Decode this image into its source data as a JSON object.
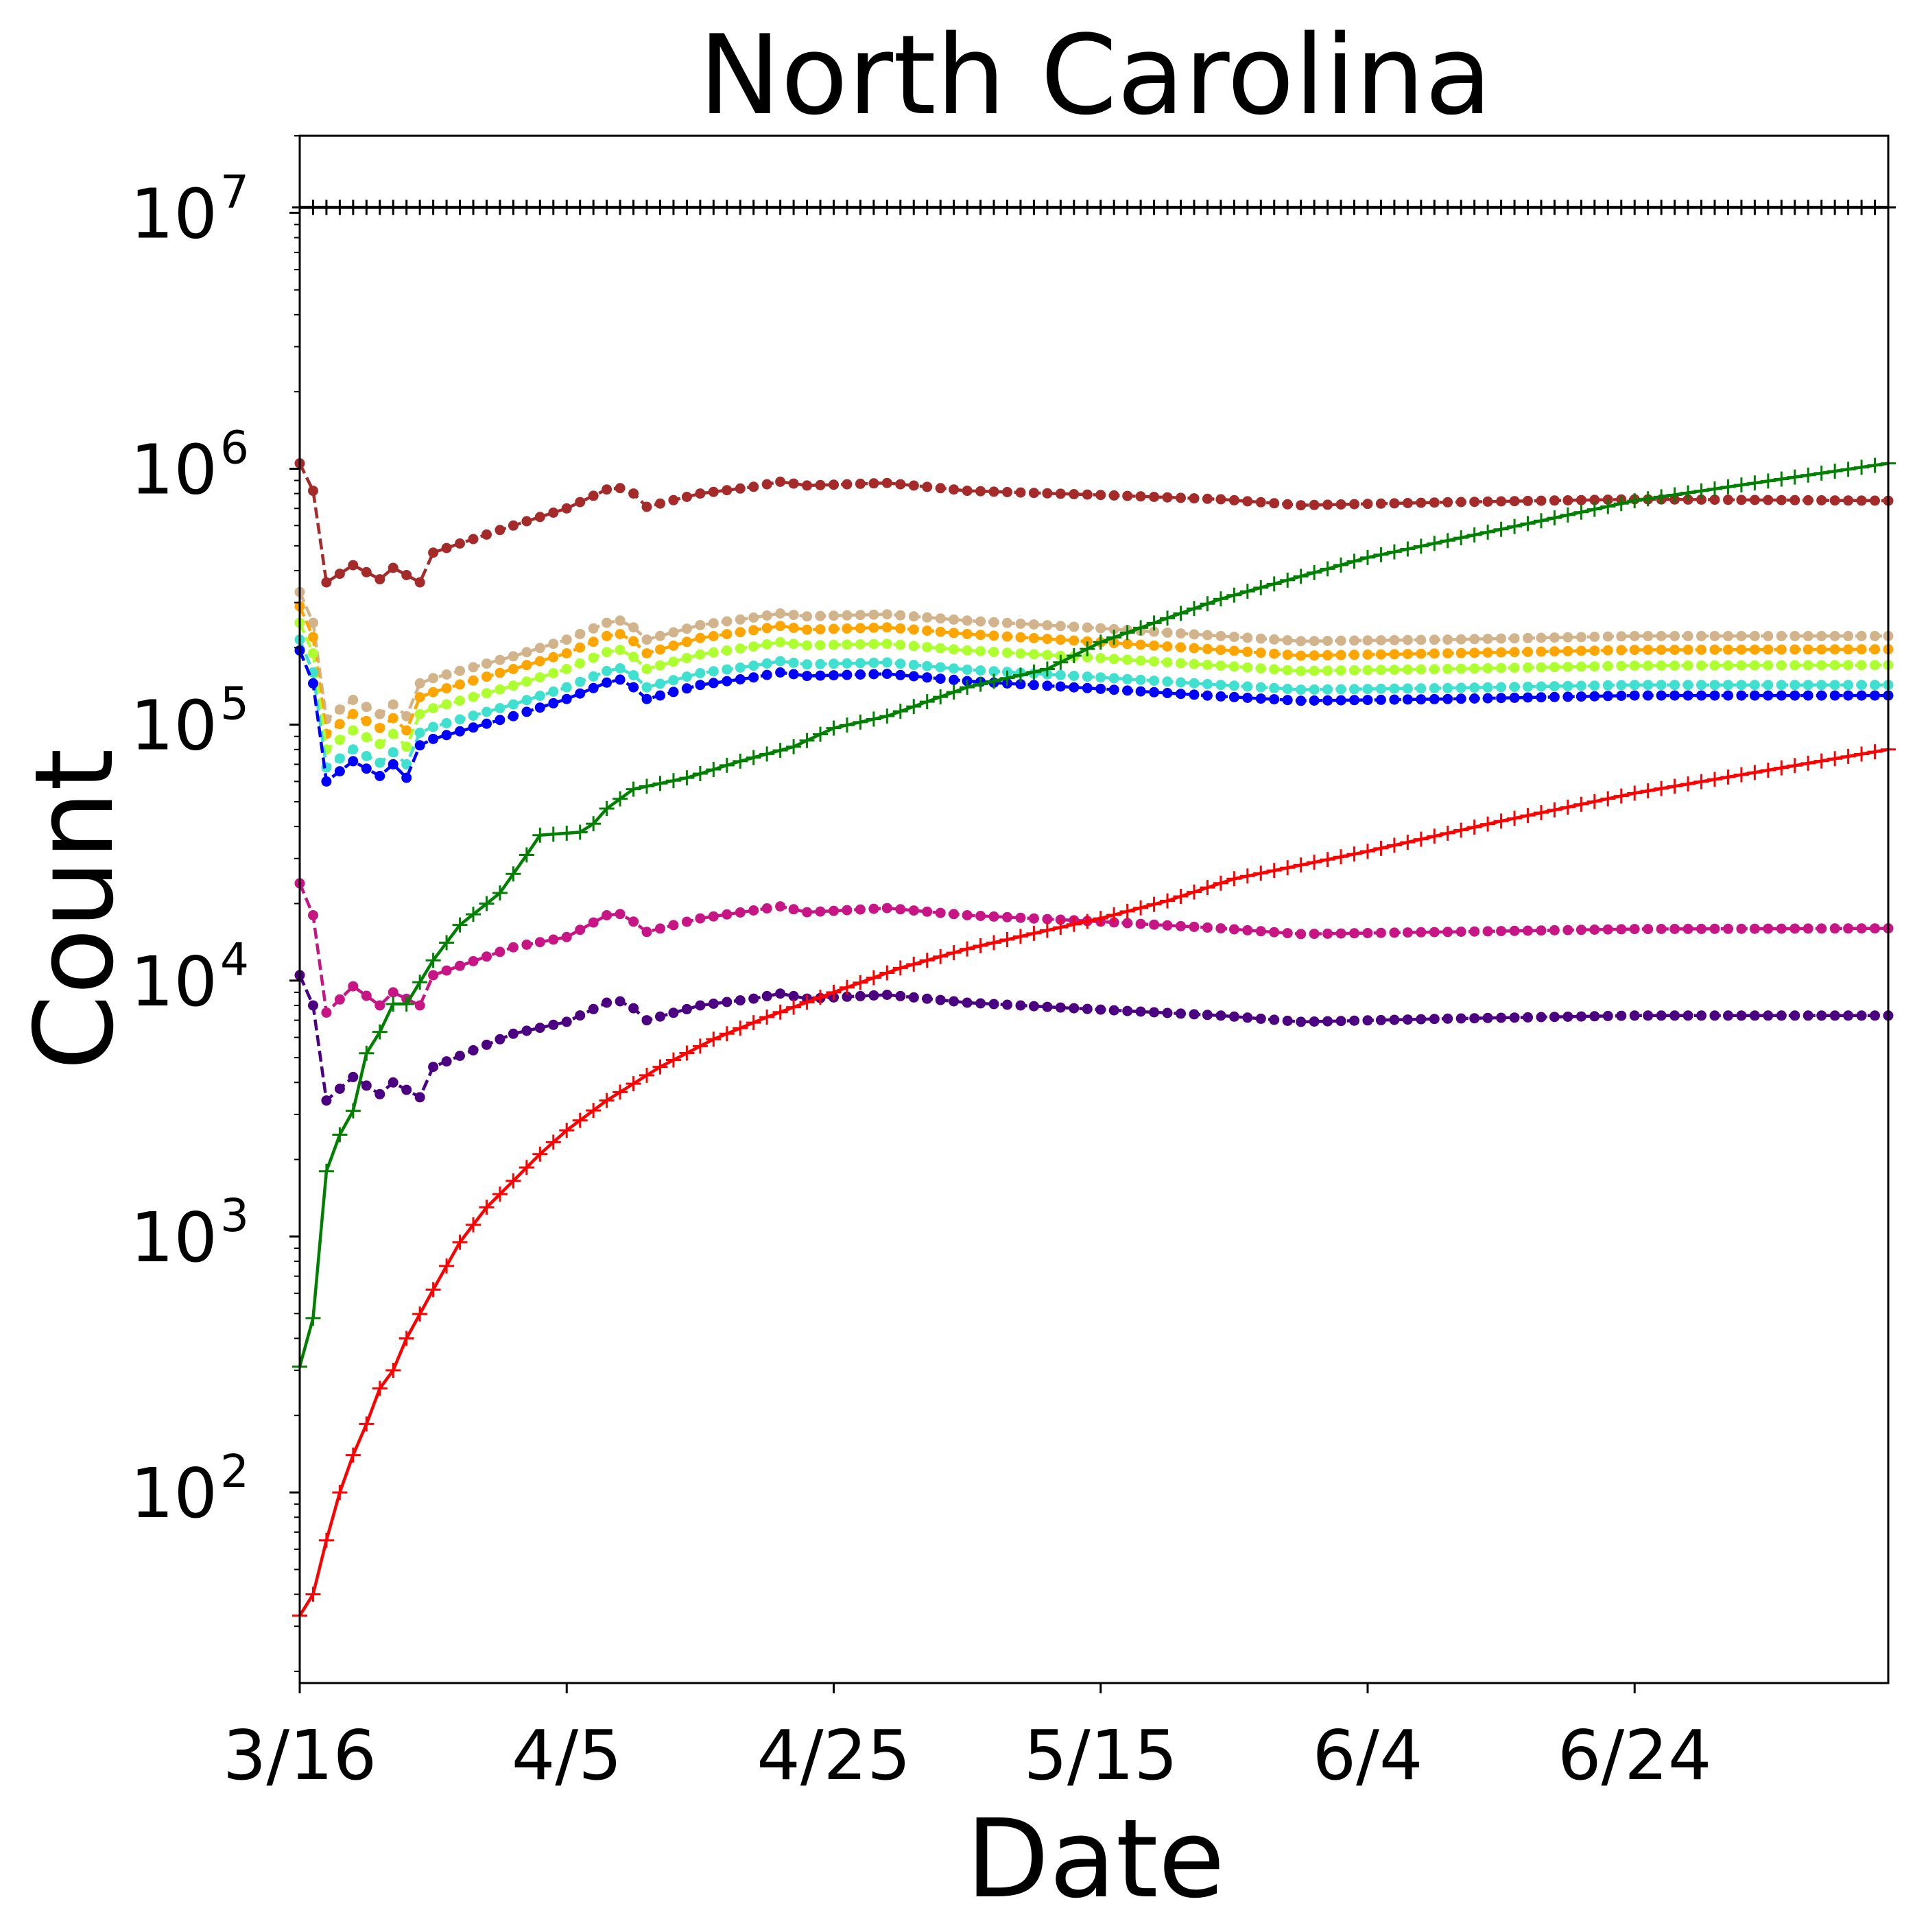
{
  "chart_data": {
    "type": "line",
    "title": "North Carolina",
    "xlabel": "Date",
    "ylabel": "Count",
    "yscale": "log",
    "ylim": [
      18,
      20000000
    ],
    "xlim": [
      "2020-03-16",
      "2020-07-13"
    ],
    "grid": false,
    "legend": "none",
    "x_ticks": [
      {
        "date": "2020-03-16",
        "label": "3/16"
      },
      {
        "date": "2020-04-05",
        "label": "4/5"
      },
      {
        "date": "2020-04-25",
        "label": "4/25"
      },
      {
        "date": "2020-05-15",
        "label": "5/15"
      },
      {
        "date": "2020-06-04",
        "label": "6/4"
      },
      {
        "date": "2020-06-24",
        "label": "6/24"
      }
    ],
    "y_ticks": [
      {
        "value": 100,
        "base": "10",
        "exp": "2"
      },
      {
        "value": 1000,
        "base": "10",
        "exp": "3"
      },
      {
        "value": 10000,
        "base": "10",
        "exp": "4"
      },
      {
        "value": 100000,
        "base": "10",
        "exp": "5"
      },
      {
        "value": 1000000,
        "base": "10",
        "exp": "6"
      },
      {
        "value": 10000000,
        "base": "10",
        "exp": "7"
      }
    ],
    "series": [
      {
        "color": "#000000",
        "style": "solid",
        "marker": "plus",
        "x": [
          "2020-03-16",
          "2020-07-13"
        ],
        "y": [
          10500000,
          10500000
        ]
      },
      {
        "color": "#a52a2a",
        "style": "dashed",
        "marker": "dot",
        "x": [
          "2020-03-16",
          "2020-03-17",
          "2020-03-18",
          "2020-03-20",
          "2020-03-22",
          "2020-03-23",
          "2020-03-25",
          "2020-03-26",
          "2020-03-27",
          "2020-04-01",
          "2020-04-05",
          "2020-04-08",
          "2020-04-09",
          "2020-04-10",
          "2020-04-11",
          "2020-04-15",
          "2020-04-19",
          "2020-04-21",
          "2020-04-23",
          "2020-04-29",
          "2020-05-05",
          "2020-05-15",
          "2020-05-24",
          "2020-05-30",
          "2020-06-10",
          "2020-06-24",
          "2020-07-13"
        ],
        "y": [
          1050000,
          820000,
          360000,
          420000,
          370000,
          410000,
          360000,
          470000,
          490000,
          600000,
          700000,
          830000,
          840000,
          800000,
          710000,
          800000,
          850000,
          890000,
          860000,
          880000,
          820000,
          790000,
          760000,
          720000,
          740000,
          760000,
          750000
        ]
      },
      {
        "color": "#d2b48c",
        "style": "dashed",
        "marker": "dot",
        "x": [
          "2020-03-16",
          "2020-03-17",
          "2020-03-18",
          "2020-03-20",
          "2020-03-22",
          "2020-03-23",
          "2020-03-24",
          "2020-03-25",
          "2020-03-26",
          "2020-04-01",
          "2020-04-05",
          "2020-04-08",
          "2020-04-09",
          "2020-04-10",
          "2020-04-11",
          "2020-04-15",
          "2020-04-19",
          "2020-04-21",
          "2020-04-23",
          "2020-04-29",
          "2020-05-05",
          "2020-05-15",
          "2020-05-24",
          "2020-05-30",
          "2020-06-10",
          "2020-06-24",
          "2020-07-13"
        ],
        "y": [
          330000,
          250000,
          105000,
          125000,
          110000,
          120000,
          108000,
          145000,
          152000,
          185000,
          215000,
          250000,
          255000,
          240000,
          215000,
          245000,
          262000,
          272000,
          265000,
          270000,
          255000,
          238000,
          222000,
          212000,
          215000,
          222000,
          222000
        ]
      },
      {
        "color": "#ffa500",
        "style": "dashed",
        "marker": "dot",
        "x": [
          "2020-03-16",
          "2020-03-17",
          "2020-03-18",
          "2020-03-20",
          "2020-03-22",
          "2020-03-23",
          "2020-03-24",
          "2020-03-25",
          "2020-03-26",
          "2020-04-01",
          "2020-04-05",
          "2020-04-08",
          "2020-04-09",
          "2020-04-10",
          "2020-04-11",
          "2020-04-15",
          "2020-04-19",
          "2020-04-21",
          "2020-04-23",
          "2020-04-29",
          "2020-05-05",
          "2020-05-15",
          "2020-05-24",
          "2020-05-30",
          "2020-06-10",
          "2020-06-24",
          "2020-07-13"
        ],
        "y": [
          290000,
          220000,
          92000,
          110000,
          97000,
          106000,
          95000,
          128000,
          134000,
          165000,
          190000,
          222000,
          226000,
          212000,
          190000,
          218000,
          234000,
          243000,
          235000,
          240000,
          226000,
          210000,
          196000,
          186000,
          190000,
          196000,
          197000
        ]
      },
      {
        "color": "#adff2f",
        "style": "dashed",
        "marker": "dot",
        "x": [
          "2020-03-16",
          "2020-03-17",
          "2020-03-18",
          "2020-03-20",
          "2020-03-22",
          "2020-03-23",
          "2020-03-24",
          "2020-03-25",
          "2020-03-26",
          "2020-04-01",
          "2020-04-05",
          "2020-04-08",
          "2020-04-09",
          "2020-04-10",
          "2020-04-11",
          "2020-04-15",
          "2020-04-19",
          "2020-04-21",
          "2020-04-23",
          "2020-04-29",
          "2020-05-05",
          "2020-05-15",
          "2020-05-24",
          "2020-05-30",
          "2020-06-10",
          "2020-06-24",
          "2020-07-13"
        ],
        "y": [
          250000,
          190000,
          80000,
          95000,
          84000,
          92000,
          82000,
          110000,
          116000,
          142000,
          165000,
          192000,
          196000,
          184000,
          165000,
          188000,
          202000,
          210000,
          204000,
          207000,
          195000,
          182000,
          170000,
          162000,
          165000,
          170000,
          171000
        ]
      },
      {
        "color": "#40e0d0",
        "style": "dashed",
        "marker": "dot",
        "x": [
          "2020-03-16",
          "2020-03-17",
          "2020-03-18",
          "2020-03-20",
          "2020-03-22",
          "2020-03-23",
          "2020-03-24",
          "2020-03-25",
          "2020-03-26",
          "2020-04-01",
          "2020-04-05",
          "2020-04-08",
          "2020-04-09",
          "2020-04-10",
          "2020-04-11",
          "2020-04-15",
          "2020-04-19",
          "2020-04-21",
          "2020-04-23",
          "2020-04-29",
          "2020-05-05",
          "2020-05-15",
          "2020-05-24",
          "2020-05-30",
          "2020-06-10",
          "2020-06-24",
          "2020-07-13"
        ],
        "y": [
          215000,
          160000,
          68000,
          80000,
          71000,
          78000,
          70000,
          93000,
          98000,
          120000,
          140000,
          162000,
          166000,
          156000,
          140000,
          159000,
          170000,
          177000,
          172000,
          175000,
          164000,
          153000,
          143000,
          137000,
          139000,
          143000,
          143000
        ]
      },
      {
        "color": "#0000ff",
        "style": "dashed",
        "marker": "dot",
        "x": [
          "2020-03-16",
          "2020-03-17",
          "2020-03-18",
          "2020-03-20",
          "2020-03-22",
          "2020-03-23",
          "2020-03-24",
          "2020-03-25",
          "2020-03-26",
          "2020-04-01",
          "2020-04-05",
          "2020-04-08",
          "2020-04-09",
          "2020-04-10",
          "2020-04-11",
          "2020-04-15",
          "2020-04-19",
          "2020-04-21",
          "2020-04-23",
          "2020-04-29",
          "2020-05-05",
          "2020-05-15",
          "2020-05-24",
          "2020-05-30",
          "2020-06-10",
          "2020-06-24",
          "2020-07-13"
        ],
        "y": [
          195000,
          145000,
          60000,
          72000,
          63000,
          70000,
          62000,
          83000,
          88000,
          108000,
          126000,
          146000,
          150000,
          140000,
          126000,
          143000,
          153000,
          160000,
          155000,
          158000,
          148000,
          138000,
          129000,
          124000,
          126000,
          130000,
          130000
        ]
      },
      {
        "color": "#c71585",
        "style": "dashed",
        "marker": "dot",
        "x": [
          "2020-03-16",
          "2020-03-17",
          "2020-03-18",
          "2020-03-20",
          "2020-03-22",
          "2020-03-23",
          "2020-03-25",
          "2020-03-26",
          "2020-04-01",
          "2020-04-05",
          "2020-04-08",
          "2020-04-09",
          "2020-04-10",
          "2020-04-11",
          "2020-04-15",
          "2020-04-19",
          "2020-04-21",
          "2020-04-23",
          "2020-04-29",
          "2020-05-05",
          "2020-05-15",
          "2020-05-24",
          "2020-05-30",
          "2020-06-10",
          "2020-06-24",
          "2020-07-13"
        ],
        "y": [
          24000,
          18000,
          7500,
          9500,
          8000,
          9000,
          8000,
          10500,
          13500,
          14800,
          18000,
          18200,
          17000,
          15500,
          17500,
          18800,
          19500,
          18500,
          19200,
          18000,
          17000,
          16000,
          15200,
          15500,
          15900,
          16000
        ]
      },
      {
        "color": "#4b0082",
        "style": "dashed",
        "marker": "dot",
        "x": [
          "2020-03-16",
          "2020-03-17",
          "2020-03-18",
          "2020-03-20",
          "2020-03-22",
          "2020-03-23",
          "2020-03-25",
          "2020-03-26",
          "2020-04-01",
          "2020-04-05",
          "2020-04-08",
          "2020-04-09",
          "2020-04-10",
          "2020-04-11",
          "2020-04-15",
          "2020-04-19",
          "2020-04-21",
          "2020-04-23",
          "2020-04-29",
          "2020-05-05",
          "2020-05-15",
          "2020-05-24",
          "2020-05-30",
          "2020-06-10",
          "2020-06-24",
          "2020-07-13"
        ],
        "y": [
          10500,
          8000,
          3400,
          4200,
          3600,
          4000,
          3500,
          4600,
          6200,
          6900,
          8200,
          8300,
          7800,
          7000,
          8000,
          8500,
          8900,
          8500,
          8800,
          8200,
          7700,
          7300,
          6900,
          7100,
          7300,
          7300
        ]
      },
      {
        "color": "#008000",
        "style": "solid",
        "marker": "plus",
        "x": [
          "2020-03-16",
          "2020-03-17",
          "2020-03-18",
          "2020-03-19",
          "2020-03-20",
          "2020-03-21",
          "2020-03-22",
          "2020-03-23",
          "2020-03-24",
          "2020-03-26",
          "2020-03-28",
          "2020-03-31",
          "2020-04-02",
          "2020-04-03",
          "2020-04-06",
          "2020-04-07",
          "2020-04-08",
          "2020-04-10",
          "2020-04-14",
          "2020-04-18",
          "2020-04-22",
          "2020-04-25",
          "2020-04-29",
          "2020-05-05",
          "2020-05-11",
          "2020-05-15",
          "2020-05-24",
          "2020-06-04",
          "2020-06-14",
          "2020-06-24",
          "2020-07-13"
        ],
        "y": [
          310,
          480,
          1800,
          2500,
          3100,
          5200,
          6300,
          8100,
          8100,
          12000,
          16500,
          22000,
          31000,
          37000,
          38000,
          41000,
          47000,
          56000,
          62000,
          72000,
          82000,
          97000,
          108000,
          140000,
          165000,
          210000,
          310000,
          450000,
          580000,
          750000,
          1050000
        ]
      },
      {
        "color": "#ff0000",
        "style": "solid",
        "marker": "plus",
        "x": [
          "2020-03-16",
          "2020-03-17",
          "2020-03-18",
          "2020-03-19",
          "2020-03-20",
          "2020-03-21",
          "2020-03-22",
          "2020-03-23",
          "2020-03-24",
          "2020-03-26",
          "2020-03-28",
          "2020-03-30",
          "2020-04-01",
          "2020-04-03",
          "2020-04-05",
          "2020-04-08",
          "2020-04-12",
          "2020-04-16",
          "2020-04-20",
          "2020-04-25",
          "2020-04-30",
          "2020-05-05",
          "2020-05-10",
          "2020-05-15",
          "2020-05-20",
          "2020-05-25",
          "2020-06-04",
          "2020-06-14",
          "2020-06-24",
          "2020-07-13"
        ],
        "y": [
          33,
          40,
          65,
          100,
          140,
          185,
          255,
          300,
          400,
          620,
          950,
          1300,
          1650,
          2100,
          2600,
          3400,
          4600,
          5900,
          7200,
          9000,
          11200,
          13300,
          15300,
          17500,
          20500,
          25000,
          32000,
          42000,
          54000,
          80000
        ]
      }
    ]
  }
}
